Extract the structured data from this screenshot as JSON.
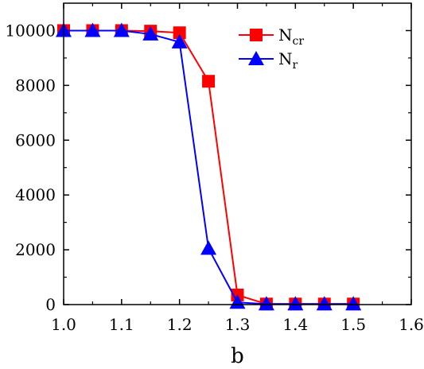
{
  "chart_data": {
    "type": "line",
    "title": "",
    "xlabel": "b",
    "ylabel": "",
    "xlim": [
      1.0,
      1.6
    ],
    "ylim": [
      0,
      11000
    ],
    "x_ticks": [
      1.0,
      1.1,
      1.2,
      1.3,
      1.4,
      1.5,
      1.6
    ],
    "x_tick_labels": [
      "1.0",
      "1.1",
      "1.2",
      "1.3",
      "1.4",
      "1.5",
      "1.6"
    ],
    "y_ticks": [
      0,
      2000,
      4000,
      6000,
      8000,
      10000
    ],
    "y_tick_labels": [
      "0",
      "2000",
      "4000",
      "6000",
      "8000",
      "10000"
    ],
    "grid": false,
    "legend_position": "top-right",
    "x": [
      1.0,
      1.05,
      1.1,
      1.15,
      1.2,
      1.25,
      1.3,
      1.35,
      1.4,
      1.45,
      1.5
    ],
    "series": [
      {
        "name": "N",
        "name_sub": "cr",
        "marker": "square",
        "color": "#ff0000",
        "values": [
          10000,
          10000,
          10000,
          9980,
          9920,
          8150,
          350,
          20,
          20,
          20,
          20
        ]
      },
      {
        "name": "N",
        "name_sub": "r",
        "marker": "triangle",
        "color": "#0000ff",
        "values": [
          10000,
          10000,
          10000,
          9870,
          9580,
          2050,
          80,
          20,
          20,
          20,
          20
        ]
      }
    ]
  }
}
